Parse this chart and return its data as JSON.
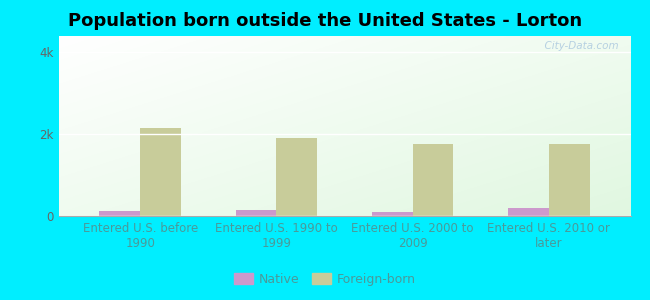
{
  "title": "Population born outside the United States - Lorton",
  "categories": [
    "Entered U.S. before\n1990",
    "Entered U.S. 1990 to\n1999",
    "Entered U.S. 2000 to\n2009",
    "Entered U.S. 2010 or\nlater"
  ],
  "native_values": [
    120,
    150,
    100,
    200
  ],
  "foreign_born_values": [
    2150,
    1900,
    1750,
    1750
  ],
  "native_color": "#cc99cc",
  "foreign_born_color": "#c8cc9a",
  "background_outer": "#00eeff",
  "ylim": [
    0,
    4400
  ],
  "ytick_labels": [
    "0",
    "2k",
    "4k"
  ],
  "ytick_values": [
    0,
    2000,
    4000
  ],
  "title_fontsize": 13,
  "tick_label_fontsize": 8.5,
  "legend_fontsize": 9,
  "bar_width": 0.3,
  "watermark": "  City-Data.com"
}
